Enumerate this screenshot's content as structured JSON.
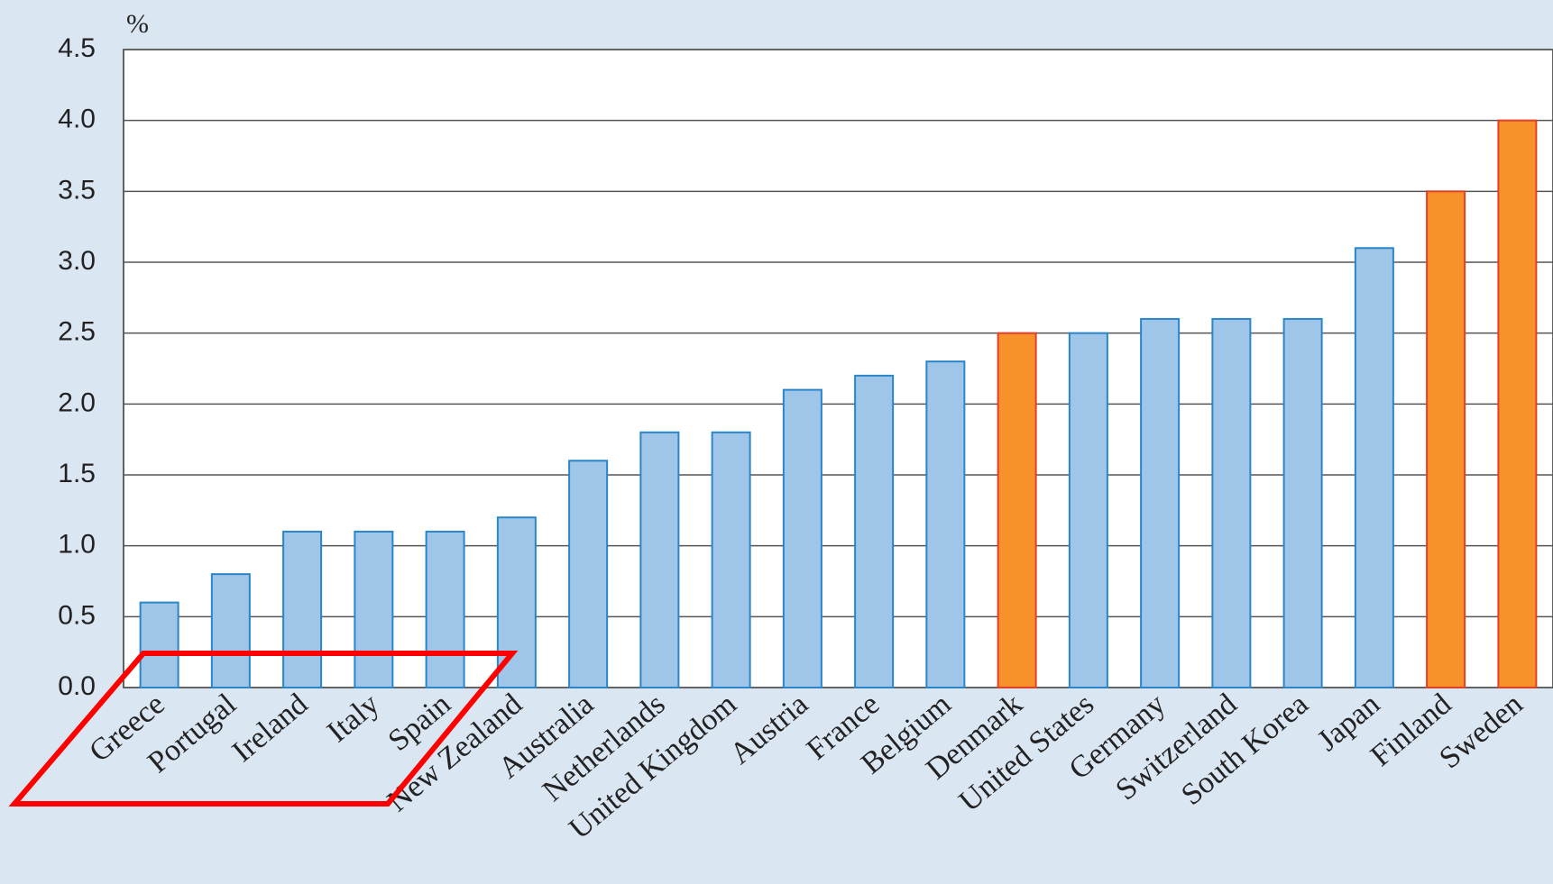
{
  "chart_data": {
    "type": "bar",
    "y_label": "%",
    "categories": [
      "Greece",
      "Portugal",
      "Ireland",
      "Italy",
      "Spain",
      "New Zealand",
      "Australia",
      "Netherlands",
      "United Kingdom",
      "Austria",
      "France",
      "Belgium",
      "Denmark",
      "United States",
      "Germany",
      "Switzerland",
      "South Korea",
      "Japan",
      "Finland",
      "Sweden"
    ],
    "values": [
      0.6,
      0.8,
      1.1,
      1.1,
      1.1,
      1.2,
      1.6,
      1.8,
      1.8,
      2.1,
      2.2,
      2.3,
      2.5,
      2.5,
      2.6,
      2.6,
      2.6,
      3.1,
      3.5,
      4.0
    ],
    "colors": [
      "#9fc5e8",
      "#9fc5e8",
      "#9fc5e8",
      "#9fc5e8",
      "#9fc5e8",
      "#9fc5e8",
      "#9fc5e8",
      "#9fc5e8",
      "#9fc5e8",
      "#9fc5e8",
      "#9fc5e8",
      "#9fc5e8",
      "#f7922a",
      "#9fc5e8",
      "#9fc5e8",
      "#9fc5e8",
      "#9fc5e8",
      "#9fc5e8",
      "#f7922a",
      "#f7922a"
    ],
    "edgecolors": [
      "#2a86c8",
      "#2a86c8",
      "#2a86c8",
      "#2a86c8",
      "#2a86c8",
      "#2a86c8",
      "#2a86c8",
      "#2a86c8",
      "#2a86c8",
      "#2a86c8",
      "#2a86c8",
      "#2a86c8",
      "#e0402a",
      "#2a86c8",
      "#2a86c8",
      "#2a86c8",
      "#2a86c8",
      "#2a86c8",
      "#e0402a",
      "#e0402a"
    ],
    "ylim": [
      0,
      4.5
    ],
    "yticks": [
      {
        "value": 0,
        "label": "0.0"
      },
      0.5,
      {
        "value": 1,
        "label": "1.0"
      },
      1.5,
      {
        "value": 2,
        "label": "2.0"
      },
      2.5,
      {
        "value": 3,
        "label": "3.0"
      },
      3.5,
      {
        "value": 4,
        "label": "4.0"
      },
      4.5
    ],
    "grid": true
  }
}
